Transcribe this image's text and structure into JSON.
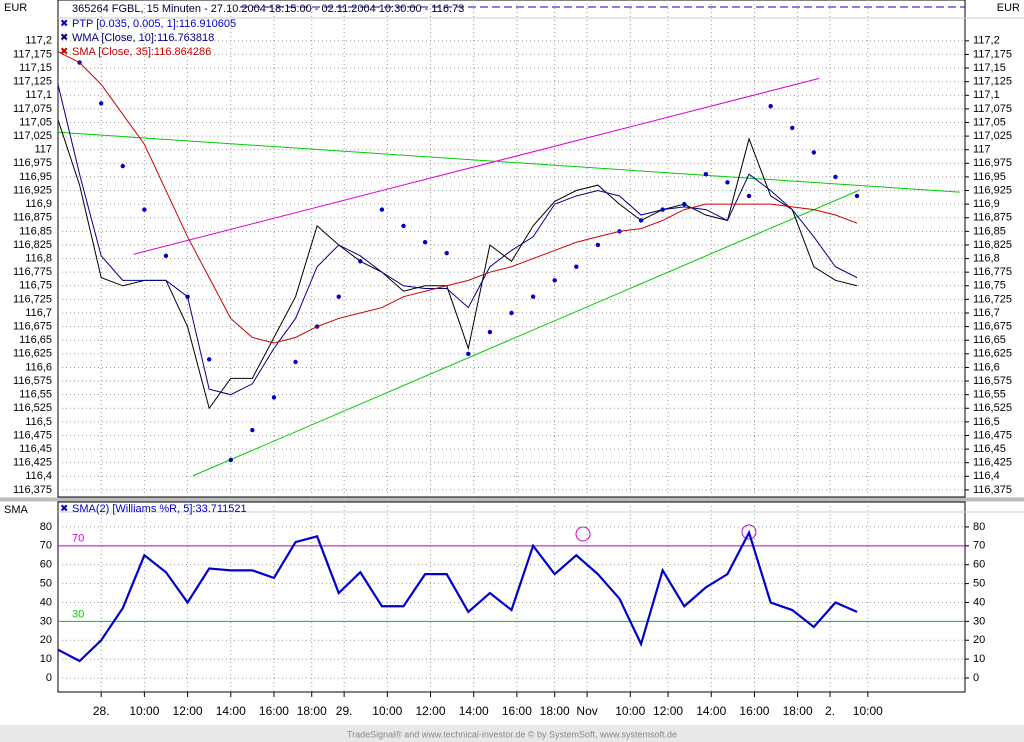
{
  "chart_data": [
    {
      "type": "line",
      "title": "365264 FGBL, 15 Minuten - 27.10.2004 18:15:00 - 02.11.2004 10:30:00 - 116.73",
      "currency": "EUR",
      "grid": true,
      "xlim": [
        0,
        168
      ],
      "xticks": [
        {
          "value": 8,
          "label": "28."
        },
        {
          "value": 16,
          "label": "10:00"
        },
        {
          "value": 24,
          "label": "12:00"
        },
        {
          "value": 32,
          "label": "14:00"
        },
        {
          "value": 40,
          "label": "16:00"
        },
        {
          "value": 47,
          "label": "18:00"
        },
        {
          "value": 53,
          "label": "29."
        },
        {
          "value": 61,
          "label": "10:00"
        },
        {
          "value": 69,
          "label": "12:00"
        },
        {
          "value": 77,
          "label": "14:00"
        },
        {
          "value": 85,
          "label": "16:00"
        },
        {
          "value": 92,
          "label": "18:00"
        },
        {
          "value": 98,
          "label": "Nov"
        },
        {
          "value": 106,
          "label": "10:00"
        },
        {
          "value": 113,
          "label": "12:00"
        },
        {
          "value": 121,
          "label": "14:00"
        },
        {
          "value": 129,
          "label": "16:00"
        },
        {
          "value": 137,
          "label": "18:00"
        },
        {
          "value": 143,
          "label": "2."
        },
        {
          "value": 150,
          "label": "10:00"
        }
      ],
      "ylim": [
        116.362,
        117.275
      ],
      "yticks": [
        {
          "value": 116.375,
          "label": "116,375"
        },
        {
          "value": 116.4,
          "label": "116,4"
        },
        {
          "value": 116.425,
          "label": "116,425"
        },
        {
          "value": 116.45,
          "label": "116,45"
        },
        {
          "value": 116.475,
          "label": "116,475"
        },
        {
          "value": 116.5,
          "label": "116,5"
        },
        {
          "value": 116.525,
          "label": "116,525"
        },
        {
          "value": 116.55,
          "label": "116,55"
        },
        {
          "value": 116.575,
          "label": "116,575"
        },
        {
          "value": 116.6,
          "label": "116,6"
        },
        {
          "value": 116.625,
          "label": "116,625"
        },
        {
          "value": 116.65,
          "label": "116,65"
        },
        {
          "value": 116.675,
          "label": "116,675"
        },
        {
          "value": 116.7,
          "label": "116,7"
        },
        {
          "value": 116.725,
          "label": "116,725"
        },
        {
          "value": 116.75,
          "label": "116,75"
        },
        {
          "value": 116.775,
          "label": "116,775"
        },
        {
          "value": 116.8,
          "label": "116,8"
        },
        {
          "value": 116.825,
          "label": "116,825"
        },
        {
          "value": 116.85,
          "label": "116,85"
        },
        {
          "value": 116.875,
          "label": "116,875"
        },
        {
          "value": 116.9,
          "label": "116,9"
        },
        {
          "value": 116.925,
          "label": "116,925"
        },
        {
          "value": 116.95,
          "label": "116,95"
        },
        {
          "value": 116.975,
          "label": "116,975"
        },
        117,
        {
          "value": 117.025,
          "label": "117,025"
        },
        {
          "value": 117.05,
          "label": "117,05"
        },
        {
          "value": 117.075,
          "label": "117,075"
        },
        {
          "value": 117.1,
          "label": "117,1"
        },
        {
          "value": 117.125,
          "label": "117,125"
        },
        {
          "value": 117.15,
          "label": "117,15"
        },
        {
          "value": 117.175,
          "label": "117,175"
        },
        {
          "value": 117.2,
          "label": "117,2"
        }
      ],
      "x": [
        0,
        4,
        8,
        12,
        16,
        20,
        24,
        28,
        32,
        36,
        40,
        44,
        48,
        52,
        56,
        60,
        64,
        68,
        72,
        76,
        80,
        84,
        88,
        92,
        96,
        100,
        104,
        108,
        112,
        116,
        120,
        124,
        128,
        132,
        136,
        140,
        144,
        148
      ],
      "series": [
        {
          "color": "#000000",
          "style": "line",
          "values": [
            117.055,
            116.935,
            116.765,
            116.75,
            116.76,
            116.76,
            116.675,
            116.525,
            116.58,
            116.58,
            116.655,
            116.73,
            116.86,
            116.825,
            116.795,
            116.775,
            116.74,
            116.75,
            116.75,
            116.635,
            116.825,
            116.795,
            116.86,
            116.905,
            116.925,
            116.935,
            116.9,
            116.87,
            116.89,
            116.9,
            116.88,
            116.87,
            117.02,
            116.915,
            116.89,
            116.785,
            116.76,
            116.75
          ]
        },
        {
          "name": "PTP [0.035, 0.005, 1]:116.910605",
          "color": "#0000cc",
          "style": "dots",
          "values": [
            null,
            117.16,
            117.085,
            116.97,
            116.89,
            116.805,
            116.73,
            116.615,
            116.43,
            116.485,
            116.545,
            116.61,
            116.675,
            116.73,
            116.795,
            116.89,
            116.86,
            116.83,
            116.81,
            116.625,
            116.665,
            116.7,
            116.73,
            116.76,
            116.785,
            116.825,
            116.85,
            116.87,
            116.89,
            116.9,
            116.955,
            116.94,
            116.915,
            117.08,
            117.04,
            116.995,
            116.95,
            116.915
          ]
        },
        {
          "name": "WMA [Close, 10]:116.763818",
          "color": "#00008b",
          "style": "line",
          "values": [
            117.12,
            116.955,
            116.805,
            116.76,
            116.76,
            116.76,
            116.73,
            116.56,
            116.55,
            116.57,
            116.635,
            116.69,
            116.785,
            116.825,
            116.805,
            116.775,
            116.75,
            116.745,
            116.745,
            116.71,
            116.785,
            116.815,
            116.84,
            116.9,
            116.915,
            116.925,
            116.915,
            116.88,
            116.89,
            116.895,
            116.89,
            116.87,
            116.955,
            116.925,
            116.89,
            116.84,
            116.785,
            116.765
          ]
        },
        {
          "name": "SMA [Close, 35]:116.864286",
          "color": "#cc0000",
          "style": "line",
          "values": [
            117.18,
            117.16,
            117.12,
            117.065,
            117.01,
            116.925,
            116.84,
            116.765,
            116.69,
            116.655,
            116.645,
            116.655,
            116.675,
            116.69,
            116.7,
            116.71,
            116.73,
            116.74,
            116.75,
            116.76,
            116.775,
            116.785,
            116.8,
            116.815,
            116.83,
            116.84,
            116.85,
            116.855,
            116.87,
            116.89,
            116.9,
            116.9,
            116.9,
            116.9,
            116.895,
            116.89,
            116.88,
            116.865
          ]
        }
      ],
      "trendlines": [
        {
          "color": "#dd00dd",
          "x": [
            14,
            141
          ],
          "y": [
            116.808,
            117.131
          ]
        },
        {
          "color": "#00cc00",
          "x": [
            0,
            167
          ],
          "y": [
            117.032,
            116.922
          ]
        },
        {
          "color": "#00cc00",
          "x": [
            25,
            148.5
          ],
          "y": [
            116.401,
            116.926
          ]
        }
      ]
    },
    {
      "type": "line",
      "axis_label": "SMA",
      "grid": true,
      "ylim": [
        -7.4,
        93.2
      ],
      "yticks": [
        0,
        10,
        20,
        30,
        40,
        50,
        60,
        70,
        80
      ],
      "levels": [
        {
          "value": 70,
          "color": "#cc00cc"
        },
        {
          "value": 30,
          "color": "#00cc00"
        }
      ],
      "series": [
        {
          "name": "SMA(2) [Williams %R, 5]:33.711521",
          "color": "#0000cc",
          "values": [
            15,
            9,
            20,
            37,
            65,
            56,
            40,
            58,
            57,
            57,
            53,
            72,
            75,
            45,
            56,
            38,
            38,
            55,
            55,
            35,
            45,
            36,
            70,
            55,
            65,
            55,
            42,
            18,
            57,
            38,
            48,
            55,
            77,
            40,
            36,
            27,
            40,
            35
          ]
        }
      ]
    }
  ],
  "footer": "TradeSignal® and www.technical-investor.de © by SystemSoft, www.systemsoft.de"
}
